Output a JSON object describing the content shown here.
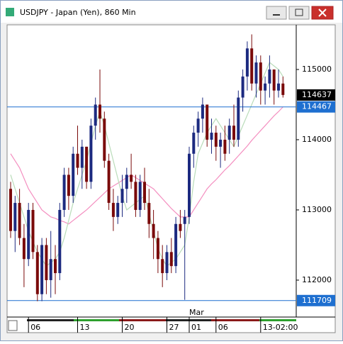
{
  "chart_data": {
    "type": "candlestick",
    "title": "USDJPY - Japan (Yen), 860 Min",
    "up_color": "#1c2a80",
    "down_color": "#7a0a0a",
    "open": [
      113300,
      112700,
      113100,
      112600,
      112300,
      113000,
      112400,
      111800,
      112500,
      112000,
      112300,
      112100,
      113000,
      113500,
      113200,
      113800,
      113600,
      113900,
      113400,
      114200,
      114500,
      114300,
      113700,
      113100,
      112900,
      113100,
      113300,
      113500,
      113400,
      113000,
      113400,
      113100,
      112800,
      112600,
      112300,
      112100,
      112400,
      112200,
      112800,
      112800,
      112900,
      113800,
      114100,
      114300,
      114500,
      114000,
      114100,
      113900,
      114000,
      114000,
      114200,
      114000,
      114600,
      114900,
      115300,
      114800,
      115100,
      114700,
      114800,
      115000,
      114700,
      114800
    ],
    "high": [
      113400,
      113200,
      113300,
      112800,
      113100,
      113100,
      112500,
      112600,
      112600,
      112700,
      112500,
      113100,
      113600,
      113600,
      113900,
      114200,
      114000,
      113900,
      114300,
      114600,
      115000,
      114400,
      113800,
      113300,
      113200,
      113500,
      113600,
      113800,
      113500,
      113500,
      113600,
      113300,
      113000,
      112700,
      112500,
      112500,
      112600,
      112900,
      113000,
      113000,
      113900,
      114200,
      114400,
      114600,
      114500,
      114300,
      114200,
      114100,
      114200,
      114300,
      114500,
      114700,
      115000,
      115400,
      115500,
      115200,
      115200,
      114900,
      115200,
      115000,
      115000,
      114900
    ],
    "low": [
      112600,
      112400,
      112500,
      111900,
      112200,
      112300,
      111700,
      111700,
      111800,
      111750,
      111800,
      112000,
      112900,
      113000,
      113100,
      113500,
      113300,
      113300,
      113300,
      114000,
      114100,
      113600,
      113000,
      112700,
      112800,
      112900,
      113100,
      113300,
      112900,
      112900,
      113000,
      112600,
      112300,
      112100,
      111900,
      112000,
      112100,
      112100,
      112600,
      111720,
      112800,
      113600,
      113900,
      114100,
      113900,
      113800,
      113700,
      113600,
      113700,
      113800,
      113900,
      113900,
      114400,
      114700,
      114700,
      114600,
      114500,
      114500,
      114600,
      114500,
      114600,
      114600
    ],
    "close": [
      112700,
      113100,
      112600,
      112300,
      113000,
      112400,
      111800,
      112500,
      112000,
      112300,
      112100,
      113000,
      113500,
      113200,
      113800,
      113600,
      113900,
      113400,
      114200,
      114500,
      114300,
      113700,
      113100,
      112900,
      113100,
      113300,
      113500,
      113400,
      113000,
      113400,
      113100,
      112800,
      112600,
      112300,
      112100,
      112400,
      112200,
      112800,
      112700,
      112900,
      113800,
      114100,
      114300,
      114500,
      114000,
      114100,
      113900,
      114000,
      113800,
      114200,
      114000,
      114600,
      114900,
      115300,
      114800,
      115100,
      114700,
      114800,
      115000,
      114700,
      114800,
      114637
    ],
    "overlays": [
      {
        "color": "#f48fc0",
        "values": [
          113800,
          113700,
          113600,
          113450,
          113300,
          113200,
          113100,
          113000,
          112950,
          112900,
          112880,
          112850,
          112830,
          112800,
          112850,
          112900,
          112950,
          113000,
          113060,
          113120,
          113180,
          113240,
          113300,
          113340,
          113380,
          113420,
          113460,
          113500,
          113460,
          113420,
          113380,
          113340,
          113300,
          113230,
          113160,
          113090,
          113020,
          112960,
          112900,
          112900,
          112900,
          113000,
          113100,
          113200,
          113300,
          113370,
          113430,
          113500,
          113570,
          113630,
          113700,
          113770,
          113840,
          113910,
          113990,
          114060,
          114130,
          114200,
          114270,
          114340,
          114400,
          114467
        ]
      },
      {
        "color": "#b9dcb9",
        "values": [
          113500,
          113300,
          113100,
          112900,
          112700,
          112550,
          112400,
          112300,
          112200,
          112250,
          112300,
          112400,
          112600,
          112850,
          113100,
          113300,
          113500,
          113700,
          113950,
          114200,
          114400,
          114200,
          113950,
          113700,
          113450,
          113200,
          113000,
          113050,
          113100,
          113150,
          113200,
          112950,
          112700,
          112450,
          112300,
          112200,
          112250,
          112300,
          112400,
          112500,
          112900,
          113400,
          113800,
          113950,
          114100,
          114200,
          114300,
          114200,
          114100,
          114000,
          113900,
          114050,
          114200,
          114350,
          114500,
          114650,
          114800,
          114950,
          115100,
          115050,
          115000,
          114900
        ]
      }
    ],
    "ylim": [
      111646,
      115636
    ],
    "yticks": [
      112000,
      113000,
      114000,
      115000
    ],
    "xticks": [
      {
        "value": 4,
        "label": "06"
      },
      {
        "value": 15,
        "label": "13"
      },
      {
        "value": 25,
        "label": "20"
      },
      {
        "value": 35,
        "label": "27"
      },
      {
        "value": 40,
        "label": "01"
      },
      {
        "value": 46,
        "label": "06"
      },
      {
        "value": 56,
        "label": "13-02:00"
      }
    ],
    "annotation": {
      "value": 40,
      "label": "Mar"
    },
    "last_price": 114637,
    "hlines": [
      114467,
      111709
    ],
    "hline_color": "#1e6fd0"
  }
}
